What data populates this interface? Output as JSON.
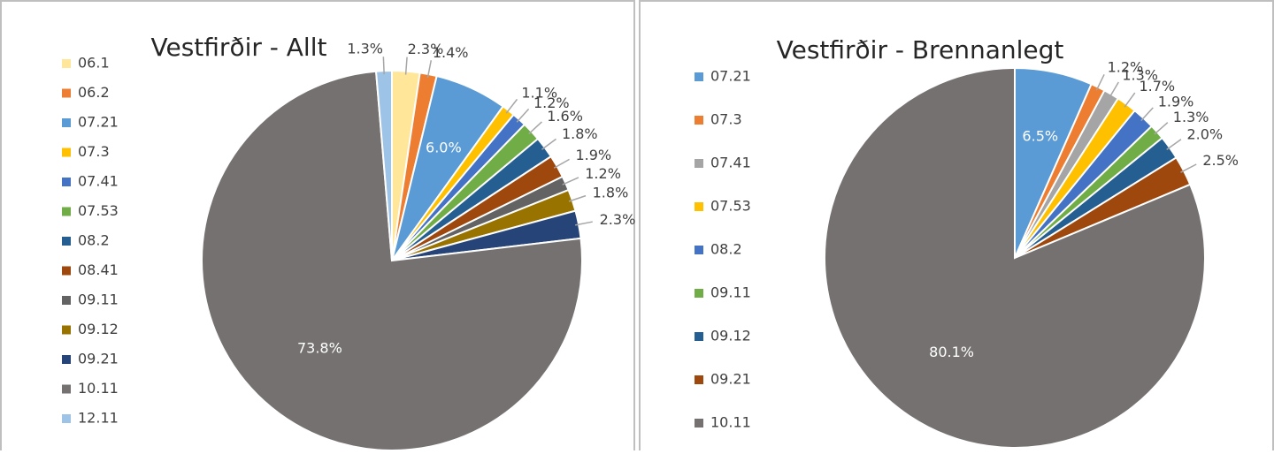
{
  "chart_data": [
    {
      "type": "pie",
      "title": "Vestfirðir - Allt",
      "categories": [
        "06.1",
        "06.2",
        "07.21",
        "07.3",
        "07.41",
        "07.53",
        "08.2",
        "08.41",
        "09.11",
        "09.12",
        "09.21",
        "10.11",
        "12.11"
      ],
      "values": [
        2.3,
        1.4,
        6.0,
        1.1,
        1.2,
        1.6,
        1.8,
        1.9,
        1.2,
        1.8,
        2.3,
        73.8,
        1.3
      ],
      "value_labels": [
        "2.3%",
        "1.4%",
        "6.0%",
        "1.1%",
        "1.2%",
        "1.6%",
        "1.8%",
        "1.9%",
        "1.2%",
        "1.8%",
        "2.3%",
        "73.8%",
        "1.3%"
      ],
      "colors": [
        "#ffe699",
        "#ed7d31",
        "#5b9bd5",
        "#ffc000",
        "#4472c4",
        "#70ad47",
        "#255e91",
        "#9e480e",
        "#636363",
        "#997300",
        "#264478",
        "#767171",
        "#9dc3e6"
      ]
    },
    {
      "type": "pie",
      "title": "Vestfirðir - Brennanlegt",
      "categories": [
        "07.21",
        "07.3",
        "07.41",
        "07.53",
        "08.2",
        "09.11",
        "09.12",
        "09.21",
        "10.11"
      ],
      "values": [
        6.5,
        1.2,
        1.3,
        1.7,
        1.9,
        1.3,
        2.0,
        2.5,
        80.1
      ],
      "value_labels": [
        "6.5%",
        "1.2%",
        "1.3%",
        "1.7%",
        "1.9%",
        "1.3%",
        "2.0%",
        "2.5%",
        "80.1%"
      ],
      "colors": [
        "#5b9bd5",
        "#ed7d31",
        "#a5a5a5",
        "#ffc000",
        "#4472c4",
        "#70ad47",
        "#255e91",
        "#9e480e",
        "#767171"
      ]
    }
  ]
}
